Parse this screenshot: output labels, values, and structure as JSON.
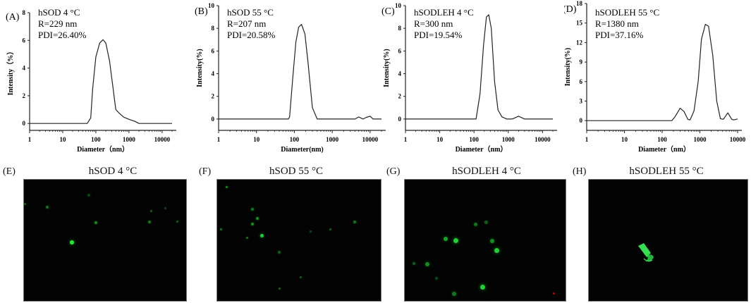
{
  "figure": {
    "row1": [
      {
        "label": "(A)",
        "sample": "hSOD 4 °C",
        "radius": "R=229 nm",
        "pdi": "PDI=26.40%",
        "ylabel": "Intensity（%）",
        "xlabel": "Diameter（nm）"
      },
      {
        "label": "(B)",
        "sample": "hSOD 55 °C",
        "radius": "R=207 nm",
        "pdi": "PDI=20.58%",
        "ylabel": "Intensity(%)",
        "xlabel": "Diameter(nm)"
      },
      {
        "label": "(C)",
        "sample": "hSODLEH  4 °C",
        "radius": "R=300 nm",
        "pdi": "PDI=19.54%",
        "ylabel": "Intensity(%)",
        "xlabel": "Diameter（nm）"
      },
      {
        "label": "(D)",
        "sample": "hSODLEH  55 °C",
        "radius": "R=1380 nm",
        "pdi": "PDI=37.16%",
        "ylabel": "Intensity(%)",
        "xlabel": "Diameter（nm）"
      }
    ],
    "row2": [
      {
        "label": "(E)",
        "title": "hSOD 4 °C"
      },
      {
        "label": "(F)",
        "title": "hSOD 55 °C"
      },
      {
        "label": "(G)",
        "title": "hSODLEH 4 °C"
      },
      {
        "label": "(H)",
        "title": "hSODLEH 55 °C"
      }
    ]
  },
  "chart_data": [
    {
      "type": "line",
      "title": "hSOD 4 °C",
      "annotations": [
        "R=229 nm",
        "PDI=26.40%"
      ],
      "xlabel": "Diameter（nm）",
      "ylabel": "Intensity（%）",
      "xscale": "log",
      "xlim": [
        1,
        20000
      ],
      "ylim": [
        -0.5,
        8
      ],
      "xticks": [
        1,
        10,
        100,
        1000,
        10000
      ],
      "yticks": [
        0,
        2,
        4,
        6,
        8
      ],
      "x": [
        1,
        55,
        70,
        80,
        100,
        130,
        165,
        200,
        260,
        320,
        400,
        500,
        700,
        1000,
        1500,
        2000,
        20000
      ],
      "y": [
        0,
        0,
        0.4,
        2.5,
        4.8,
        5.8,
        6.05,
        5.8,
        4.5,
        2.8,
        1.0,
        0.75,
        0.45,
        0.3,
        0.15,
        0,
        0
      ]
    },
    {
      "type": "line",
      "title": "hSOD 55 °C",
      "annotations": [
        "R=207 nm",
        "PDI=20.58%"
      ],
      "xlabel": "Diameter(nm)",
      "ylabel": "Intensity(%)",
      "xscale": "log",
      "xlim": [
        1,
        20000
      ],
      "ylim": [
        -1,
        10
      ],
      "xticks": [
        1,
        10,
        100,
        1000,
        10000
      ],
      "yticks": [
        0,
        2,
        4,
        6,
        8,
        10
      ],
      "x": [
        1,
        70,
        75,
        90,
        110,
        130,
        155,
        190,
        230,
        300,
        400,
        4000,
        5000,
        6500,
        8000,
        10000,
        12000,
        20000
      ],
      "y": [
        0,
        0,
        0.2,
        3.5,
        6.8,
        8.1,
        8.35,
        7.5,
        5.0,
        1.0,
        0,
        0,
        0.18,
        0,
        0.15,
        0.25,
        0,
        0
      ]
    },
    {
      "type": "line",
      "title": "hSODLEH  4 °C",
      "annotations": [
        "R=300 nm",
        "PDI=19.54%"
      ],
      "xlabel": "Diameter（nm）",
      "ylabel": "Intensity(%)",
      "xscale": "log",
      "xlim": [
        1,
        20000
      ],
      "ylim": [
        -1,
        10
      ],
      "xticks": [
        1,
        10,
        100,
        1000,
        10000
      ],
      "yticks": [
        0,
        2,
        4,
        6,
        8,
        10
      ],
      "x": [
        1,
        115,
        150,
        190,
        230,
        270,
        320,
        400,
        500,
        650,
        900,
        1300,
        2000,
        3000,
        20000
      ],
      "y": [
        0,
        0,
        2.2,
        6.5,
        9.0,
        9.2,
        8.0,
        3.3,
        0.8,
        0.2,
        0,
        0,
        0.25,
        0,
        0
      ]
    },
    {
      "type": "line",
      "title": "hSODLEH  55 °C",
      "annotations": [
        "R=1380 nm",
        "PDI=37.16%"
      ],
      "xlabel": "Diameter（nm）",
      "ylabel": "Intensity(%)",
      "xscale": "log",
      "xlim": [
        1,
        10000
      ],
      "ylim": [
        -1.5,
        18
      ],
      "xticks": [
        1,
        10,
        100,
        1000,
        10000
      ],
      "yticks": [
        0,
        3,
        6,
        9,
        12,
        15,
        18
      ],
      "x": [
        1,
        180,
        220,
        300,
        380,
        480,
        550,
        700,
        900,
        1100,
        1400,
        1700,
        2200,
        2800,
        3500,
        4200,
        5500,
        7000,
        8000,
        10000
      ],
      "y": [
        0,
        0,
        0.6,
        1.9,
        1.4,
        0.2,
        0.1,
        1.5,
        6.0,
        12.5,
        14.8,
        14.5,
        10.0,
        3.0,
        0.3,
        0.2,
        1.2,
        0.2,
        0.1,
        0.25
      ]
    }
  ]
}
